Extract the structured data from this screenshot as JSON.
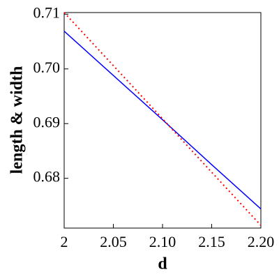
{
  "chart_data": {
    "type": "line",
    "x_label": "d",
    "y_label": "length & width",
    "x": [
      2,
      2.05,
      2.1,
      2.15,
      2.2
    ],
    "series": [
      {
        "color": "#0000ff",
        "style": "solid",
        "values": [
          0.7069,
          0.6988,
          0.6907,
          0.6825,
          0.6744
        ]
      },
      {
        "color": "#ff0000",
        "style": "dotted",
        "values": [
          0.7103,
          0.7006,
          0.6909,
          0.6811,
          0.6714
        ]
      }
    ],
    "xlim": [
      2,
      2.2
    ],
    "xticks": [
      2,
      2.05,
      {
        "value": 2.1,
        "label": "2.10"
      },
      2.15,
      {
        "value": 2.2,
        "label": "2.20"
      }
    ],
    "ylim": [
      0.6709,
      0.7103
    ],
    "yticks": [
      0.68,
      0.69,
      {
        "value": 0.7,
        "label": "0.70"
      },
      0.71
    ]
  }
}
